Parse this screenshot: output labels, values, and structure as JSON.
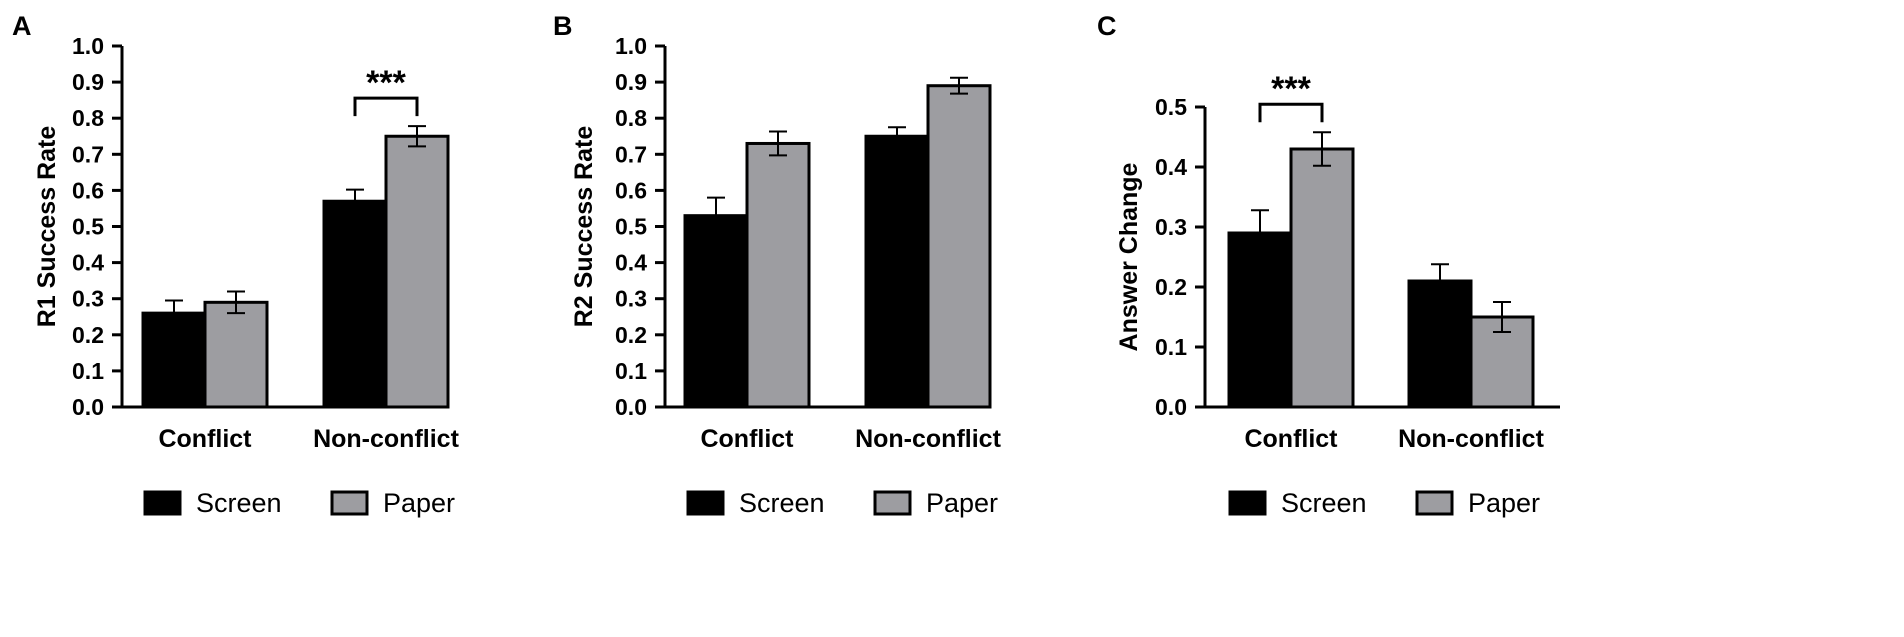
{
  "figure": {
    "legend": [
      {
        "label": "Screen",
        "color": "#000000"
      },
      {
        "label": "Paper",
        "color": "#9d9da1"
      }
    ]
  },
  "chart_data": [
    {
      "panel": "A",
      "type": "bar",
      "categories": [
        "Conflict",
        "Non-conflict"
      ],
      "series": [
        {
          "name": "Screen",
          "values": [
            0.26,
            0.57
          ],
          "errors": [
            0.035,
            0.032
          ]
        },
        {
          "name": "Paper",
          "values": [
            0.29,
            0.75
          ],
          "errors": [
            0.03,
            0.028
          ]
        }
      ],
      "ylabel": "R1 Success Rate",
      "ylim": [
        0,
        1.0
      ],
      "yticks": [
        "0.0",
        "0.1",
        "0.2",
        "0.3",
        "0.4",
        "0.5",
        "0.6",
        "0.7",
        "0.8",
        "0.9",
        "1.0"
      ],
      "significance": [
        {
          "category_index": 1,
          "label": "***"
        }
      ],
      "grid": false
    },
    {
      "panel": "B",
      "type": "bar",
      "categories": [
        "Conflict",
        "Non-conflict"
      ],
      "series": [
        {
          "name": "Screen",
          "values": [
            0.53,
            0.75
          ],
          "errors": [
            0.05,
            0.025
          ]
        },
        {
          "name": "Paper",
          "values": [
            0.73,
            0.89
          ],
          "errors": [
            0.033,
            0.022
          ]
        }
      ],
      "ylabel": "R2 Success Rate",
      "ylim": [
        0,
        1.0
      ],
      "yticks": [
        "0.0",
        "0.1",
        "0.2",
        "0.3",
        "0.4",
        "0.5",
        "0.6",
        "0.7",
        "0.8",
        "0.9",
        "1.0"
      ],
      "significance": [],
      "grid": false
    },
    {
      "panel": "C",
      "type": "bar",
      "categories": [
        "Conflict",
        "Non-conflict"
      ],
      "series": [
        {
          "name": "Screen",
          "values": [
            0.29,
            0.21
          ],
          "errors": [
            0.038,
            0.028
          ]
        },
        {
          "name": "Paper",
          "values": [
            0.43,
            0.15
          ],
          "errors": [
            0.028,
            0.025
          ]
        }
      ],
      "ylabel": "Answer Change",
      "ylim": [
        0,
        0.5
      ],
      "yticks": [
        "0.0",
        "0.1",
        "0.2",
        "0.3",
        "0.4",
        "0.5"
      ],
      "significance": [
        {
          "category_index": 0,
          "label": "***"
        }
      ],
      "grid": false
    }
  ]
}
